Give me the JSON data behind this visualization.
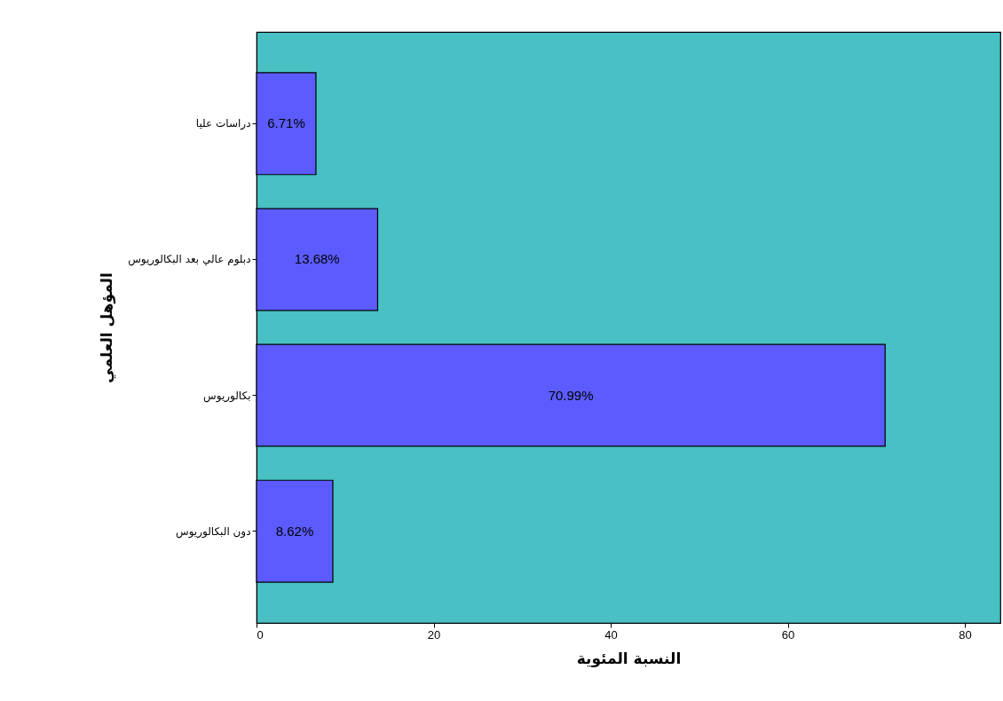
{
  "chart_data": {
    "type": "bar",
    "orientation": "horizontal",
    "xlabel": "النسبة المئوية",
    "ylabel": "المؤهل العلمي",
    "categories": [
      "دراسات عليا",
      "دبلوم عالي بعد البكالوريوس",
      "بكالوريوس",
      "دون البكالوريوس"
    ],
    "values": [
      6.71,
      13.68,
      70.99,
      8.62
    ],
    "value_labels": [
      "6.71%",
      "13.68%",
      "70.99%",
      "8.62%"
    ],
    "color": "#5b5bff",
    "xlim": [
      0,
      84
    ],
    "xticks": [
      0,
      20,
      40,
      60,
      80
    ],
    "grid": false
  }
}
